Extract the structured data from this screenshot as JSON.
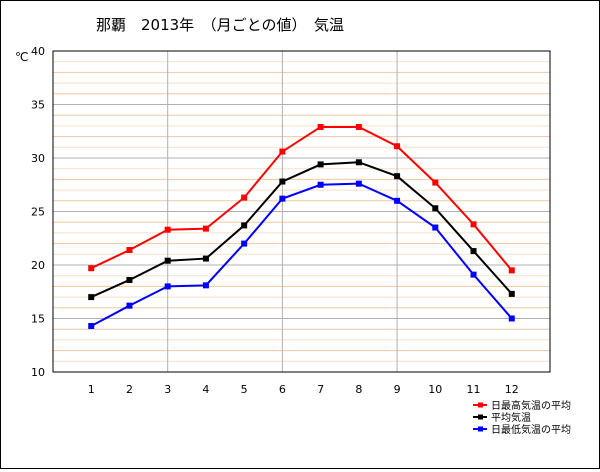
{
  "chart_data": {
    "type": "line",
    "title": "那覇　2013年　（月ごとの値）　気温",
    "ylabel": "℃",
    "xlabel": "",
    "ylim": [
      10,
      40
    ],
    "yticks": [
      10,
      15,
      20,
      25,
      30,
      35,
      40
    ],
    "categories": [
      "1",
      "2",
      "3",
      "4",
      "5",
      "6",
      "7",
      "8",
      "9",
      "10",
      "11",
      "12"
    ],
    "grid": true,
    "legend_position": "bottom-right",
    "series": [
      {
        "name": "日最高気温の平均",
        "color": "#ff0000",
        "values": [
          19.7,
          21.4,
          23.3,
          23.4,
          26.3,
          30.6,
          32.9,
          32.9,
          31.1,
          27.7,
          23.8,
          19.5
        ]
      },
      {
        "name": "平均気温",
        "color": "#000000",
        "values": [
          17.0,
          18.6,
          20.4,
          20.6,
          23.7,
          27.8,
          29.4,
          29.6,
          28.3,
          25.3,
          21.3,
          17.3
        ]
      },
      {
        "name": "日最低気温の平均",
        "color": "#0000ff",
        "values": [
          14.3,
          16.2,
          18.0,
          18.1,
          22.0,
          26.2,
          27.5,
          27.6,
          26.0,
          23.5,
          19.1,
          15.0
        ]
      }
    ]
  }
}
